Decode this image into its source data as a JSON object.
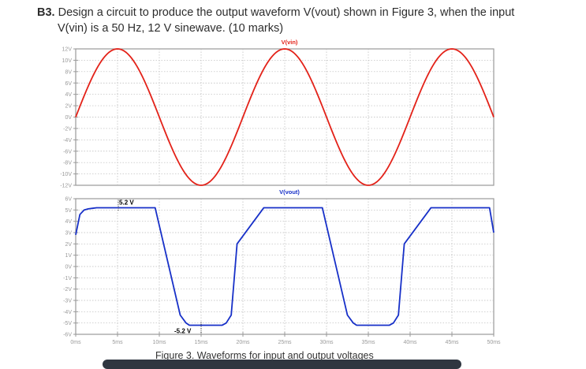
{
  "question": {
    "number": "B3.",
    "line1": "Design a circuit to produce the output waveform V(vout) shown in Figure 3, when the input",
    "line2": "V(vin) is a 50 Hz, 12 V sinewave. (10 marks)"
  },
  "figure": {
    "caption": "Figure 3. Waveforms for input and output voltages"
  },
  "colors": {
    "vin": "#e32219",
    "vout": "#1730c8",
    "grid": "#b8b8b8",
    "frame": "#9a9a9a"
  },
  "chart_data": [
    {
      "type": "line",
      "title": "V(vin)",
      "series": [
        {
          "name": "V(vin)",
          "x": [
            0,
            2.5,
            5,
            7.5,
            10,
            12.5,
            15,
            17.5,
            20,
            22.5,
            25,
            27.5,
            30,
            32.5,
            35,
            37.5,
            40,
            42.5,
            45,
            47.5,
            50
          ],
          "y": [
            0,
            8.49,
            12,
            8.49,
            0,
            -8.49,
            -12,
            -8.49,
            0,
            8.49,
            12,
            8.49,
            0,
            -8.49,
            -12,
            -8.49,
            0,
            8.49,
            12,
            8.49,
            0
          ]
        }
      ],
      "xlabel": "",
      "ylabel": "",
      "xlim": [
        0,
        50
      ],
      "ylim": [
        -12,
        12
      ],
      "ytick_labels": [
        "12V",
        "10V",
        "8V",
        "6V",
        "4V",
        "2V",
        "0V",
        "-2V",
        "-4V",
        "-6V",
        "-8V",
        "-10V",
        "-12V"
      ],
      "grid": true
    },
    {
      "type": "line",
      "title": "V(vout)",
      "series": [
        {
          "name": "V(vout)",
          "x": [
            0,
            0.5,
            1,
            1.5,
            2,
            2.5,
            9.5,
            12.5,
            13.2,
            13.6,
            17.5,
            18,
            18.6,
            19.3,
            22.5,
            29.5,
            32.5,
            33.2,
            33.6,
            37.5,
            38,
            38.6,
            39.3,
            42.5,
            49.5,
            50
          ],
          "y": [
            2.8,
            4.6,
            5.0,
            5.1,
            5.15,
            5.2,
            5.2,
            -4.3,
            -5.0,
            -5.2,
            -5.2,
            -5.0,
            -4.3,
            2.0,
            5.2,
            5.2,
            -4.3,
            -5.0,
            -5.2,
            -5.2,
            -5.0,
            -4.3,
            2.0,
            5.2,
            5.2,
            3.0
          ]
        }
      ],
      "annotations": [
        "5.2 V",
        "-5.2 V"
      ],
      "xlabel": "",
      "ylabel": "",
      "xlim": [
        0,
        50
      ],
      "ylim": [
        -6,
        6
      ],
      "ytick_labels": [
        "6V",
        "5V",
        "4V",
        "3V",
        "2V",
        "1V",
        "0V",
        "-1V",
        "-2V",
        "-3V",
        "-4V",
        "-5V",
        "-6V"
      ],
      "xtick_labels": [
        "0ms",
        "5ms",
        "10ms",
        "15ms",
        "20ms",
        "25ms",
        "30ms",
        "35ms",
        "40ms",
        "45ms",
        "50ms"
      ],
      "grid": true
    }
  ]
}
